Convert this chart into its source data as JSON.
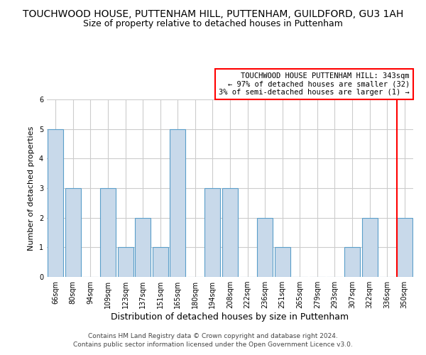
{
  "title1": "TOUCHWOOD HOUSE, PUTTENHAM HILL, PUTTENHAM, GUILDFORD, GU3 1AH",
  "title2": "Size of property relative to detached houses in Puttenham",
  "xlabel": "Distribution of detached houses by size in Puttenham",
  "ylabel": "Number of detached properties",
  "categories": [
    "66sqm",
    "80sqm",
    "94sqm",
    "109sqm",
    "123sqm",
    "137sqm",
    "151sqm",
    "165sqm",
    "180sqm",
    "194sqm",
    "208sqm",
    "222sqm",
    "236sqm",
    "251sqm",
    "265sqm",
    "279sqm",
    "293sqm",
    "307sqm",
    "322sqm",
    "336sqm",
    "350sqm"
  ],
  "values": [
    5,
    3,
    0,
    3,
    1,
    2,
    1,
    5,
    0,
    3,
    3,
    0,
    2,
    1,
    0,
    0,
    0,
    1,
    2,
    0,
    2
  ],
  "bar_color": "#c8d9ea",
  "bar_edge_color": "#5a9ec9",
  "grid_color": "#cccccc",
  "red_line_x": 19.55,
  "annotation_text": "TOUCHWOOD HOUSE PUTTENHAM HILL: 343sqm\n← 97% of detached houses are smaller (32)\n3% of semi-detached houses are larger (1) →",
  "annotation_box_color": "white",
  "annotation_box_edge": "red",
  "footer1": "Contains HM Land Registry data © Crown copyright and database right 2024.",
  "footer2": "Contains public sector information licensed under the Open Government Licence v3.0.",
  "ylim": [
    0,
    6
  ],
  "yticks": [
    0,
    1,
    2,
    3,
    4,
    5,
    6
  ],
  "title1_fontsize": 10,
  "title2_fontsize": 9,
  "xlabel_fontsize": 9,
  "ylabel_fontsize": 8,
  "tick_fontsize": 7,
  "annotation_fontsize": 7.5,
  "footer_fontsize": 6.5
}
